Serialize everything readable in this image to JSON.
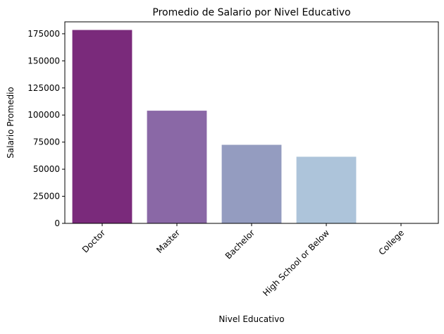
{
  "chart_data": {
    "type": "bar",
    "title": "Promedio de Salario por Nivel Educativo",
    "xlabel": "Nivel Educativo",
    "ylabel": "Salario Promedio",
    "categories": [
      "Doctor",
      "Master",
      "Bachelor",
      "High School or Below",
      "College"
    ],
    "values": [
      178500,
      104000,
      72500,
      61500,
      0
    ],
    "colors": [
      "#7a2a7b",
      "#8a68a6",
      "#949cc0",
      "#adc4da",
      "#cfdcec"
    ],
    "ylim": [
      0,
      186000
    ],
    "yticks": [
      0,
      25000,
      50000,
      75000,
      100000,
      125000,
      150000,
      175000
    ],
    "ytick_labels": [
      "0",
      "25000",
      "50000",
      "75000",
      "100000",
      "125000",
      "150000",
      "175000"
    ],
    "grid": false,
    "legend": "none"
  }
}
